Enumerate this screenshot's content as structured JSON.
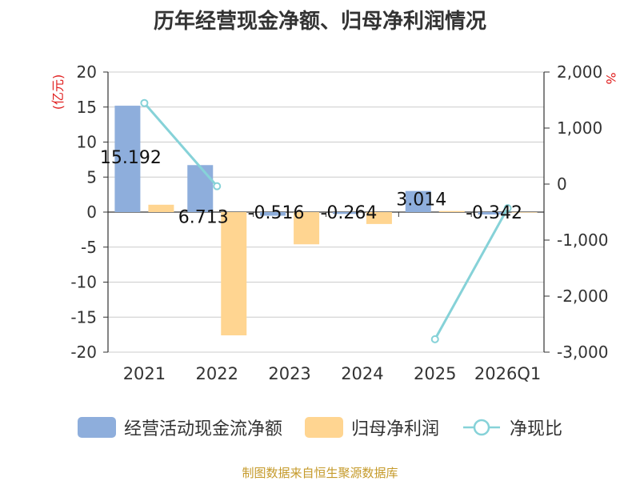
{
  "chart_data": {
    "type": "bar",
    "title": "历年经营现金净额、归母净利润情况",
    "categories": [
      "2021",
      "2022",
      "2023",
      "2024",
      "2025",
      "2026Q1"
    ],
    "y_left": {
      "unit": "(亿元)",
      "min": -20,
      "max": 20,
      "ticks": [
        "20",
        "15",
        "10",
        "5",
        "0",
        "-5",
        "-10",
        "-15",
        "-20"
      ]
    },
    "y_right": {
      "unit": "%",
      "min": -3000,
      "max": 2000,
      "ticks": [
        "2,000",
        "1,000",
        "0",
        "-1,000",
        "-2,000",
        "-3,000"
      ]
    },
    "series": [
      {
        "name": "经营活动现金流净额",
        "type": "bar",
        "color": "#8eaedc",
        "values": [
          15.192,
          6.713,
          -0.516,
          -0.264,
          3.014,
          -0.342
        ],
        "labels": [
          "15.192",
          "6.713",
          "-0.516",
          "-0.264",
          "3.014",
          "-0.342"
        ]
      },
      {
        "name": "归母净利润",
        "type": "bar",
        "color": "#ffd591",
        "values": [
          1.05,
          -17.6,
          -4.6,
          -1.7,
          0.15,
          -0.05
        ]
      },
      {
        "name": "净现比",
        "type": "line",
        "axis": "right",
        "color": "#86d2d8",
        "points": [
          {
            "category": "2021",
            "value": 1447
          },
          {
            "category": "2022",
            "value": -38
          },
          {
            "category": "2025",
            "value": -2770
          },
          {
            "category": "2026Q1",
            "value": -430
          }
        ]
      }
    ],
    "grid": true,
    "legend_position": "bottom"
  },
  "source": {
    "text": "制图数据来自恒生聚源数据库",
    "color": "#c59a2a"
  }
}
